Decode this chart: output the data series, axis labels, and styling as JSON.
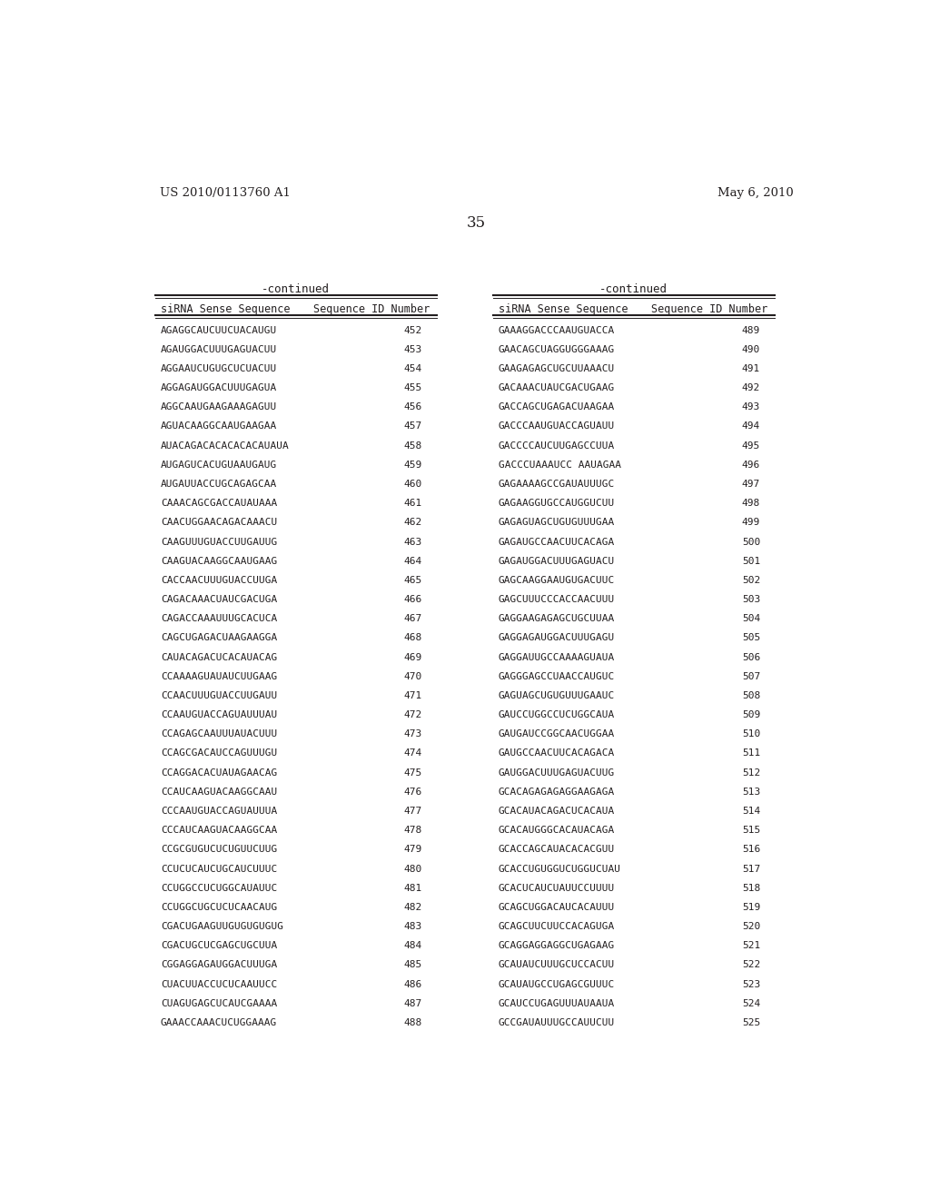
{
  "page_number": "35",
  "patent_number": "US 2010/0113760 A1",
  "patent_date": "May 6, 2010",
  "background_color": "#ffffff",
  "text_color": "#231f20",
  "continued_label": "-continued",
  "col1_header1": "siRNA Sense Sequence",
  "col1_header2": "Sequence ID Number",
  "col2_header1": "siRNA Sense Sequence",
  "col2_header2": "Sequence ID Number",
  "left_data": [
    [
      "AGAGGCAUCUUCUACAUGU",
      "452"
    ],
    [
      "AGAUGGACUUUGAGUACUU",
      "453"
    ],
    [
      "AGGAAUCUGUGCUCUACUU",
      "454"
    ],
    [
      "AGGAGAUGGACUUUGAGUA",
      "455"
    ],
    [
      "AGGCAAUGAAGAAAGAGUU",
      "456"
    ],
    [
      "AGUACAAGGCAAUGAAGAA",
      "457"
    ],
    [
      "AUACAGACACACACACAUAUA",
      "458"
    ],
    [
      "AUGAGUCACUGUAAUGAUG",
      "459"
    ],
    [
      "AUGAUUACCUGCAGAGCAA",
      "460"
    ],
    [
      "CAAACAGCGACCAUAUAAA",
      "461"
    ],
    [
      "CAACUGGAACAGACAAACU",
      "462"
    ],
    [
      "CAAGUUUGUACCUUGAUUG",
      "463"
    ],
    [
      "CAAGUACAAGGCAAUGAAG",
      "464"
    ],
    [
      "CACCAACUUUGUACCUUGA",
      "465"
    ],
    [
      "CAGACAAACUAUCGACUGA",
      "466"
    ],
    [
      "CAGACCAAAUUUGCACUCA",
      "467"
    ],
    [
      "CAGCUGAGACUAAGAAGGA",
      "468"
    ],
    [
      "CAUACAGACUCACAUACAG",
      "469"
    ],
    [
      "CCAAAAGUAUAUCUUGAAG",
      "470"
    ],
    [
      "CCAACUUUGUACCUUGAUU",
      "471"
    ],
    [
      "CCAAUGUACCAGUAUUUAU",
      "472"
    ],
    [
      "CCAGAGCAAUUUAUACUUU",
      "473"
    ],
    [
      "CCAGCGACAUCCAGUUUGU",
      "474"
    ],
    [
      "CCAGGACACUAUAGAACAG",
      "475"
    ],
    [
      "CCAUCAAGUACAAGGCAAU",
      "476"
    ],
    [
      "CCCAAUGUACCAGUAUUUA",
      "477"
    ],
    [
      "CCCAUCAAGUACAAGGCAA",
      "478"
    ],
    [
      "CCGCGUGUCUCUGUUCUUG",
      "479"
    ],
    [
      "CCUCUCAUCUGCAUCUUUC",
      "480"
    ],
    [
      "CCUGGCCUCUGGCAUAUUC",
      "481"
    ],
    [
      "CCUGGCUGCUCUCAACAUG",
      "482"
    ],
    [
      "CGACUGAAGUUGUGUGUGUG",
      "483"
    ],
    [
      "CGACUGCUCGAGCUGCUUA",
      "484"
    ],
    [
      "CGGAGGAGAUGGACUUUGA",
      "485"
    ],
    [
      "CUACUUACCUCUCAAUUCC",
      "486"
    ],
    [
      "CUAGUGAGCUCAUCGAAAA",
      "487"
    ],
    [
      "GAAACCAAACUCUGGAAAG",
      "488"
    ]
  ],
  "right_data": [
    [
      "GAAAGGACCCAAUGUACCA",
      "489"
    ],
    [
      "GAACAGCUAGGUGGGAAAG",
      "490"
    ],
    [
      "GAAGAGAGCUGCUUAAACU",
      "491"
    ],
    [
      "GACAAACUAUCGACUGAAG",
      "492"
    ],
    [
      "GACCAGCUGAGACUAAGAA",
      "493"
    ],
    [
      "GACCCAAUGUACCAGUAUU",
      "494"
    ],
    [
      "GACCCCAUCUUGAGCCUUA",
      "495"
    ],
    [
      "GACCCUAAAUCC AAUAGAA",
      "496"
    ],
    [
      "GAGAAAAGCCGAUAUUUGC",
      "497"
    ],
    [
      "GAGAAGGUGCCAUGGUCUU",
      "498"
    ],
    [
      "GAGAGUAGCUGUGUUUGAA",
      "499"
    ],
    [
      "GAGAUGCCAACUUCACAGA",
      "500"
    ],
    [
      "GAGAUGGACUUUGAGUACU",
      "501"
    ],
    [
      "GAGCAAGGAAUGUGACUUC",
      "502"
    ],
    [
      "GAGCUUUCCCACCAACUUU",
      "503"
    ],
    [
      "GAGGAAGAGAGCUGCUUAA",
      "504"
    ],
    [
      "GAGGAGAUGGACUUUGAGU",
      "505"
    ],
    [
      "GAGGAUUGCCAAAAGUAUA",
      "506"
    ],
    [
      "GAGGGAGCCUAACCAUGUC",
      "507"
    ],
    [
      "GAGUAGCUGUGUUUGAAUC",
      "508"
    ],
    [
      "GAUCCUGGCCUCUGGCAUA",
      "509"
    ],
    [
      "GAUGAUCCGGCAACUGGAA",
      "510"
    ],
    [
      "GAUGCCAACUUCACAGACA",
      "511"
    ],
    [
      "GAUGGACUUUGAGUACUUG",
      "512"
    ],
    [
      "GCACAGAGAGAGGAAGAGA",
      "513"
    ],
    [
      "GCACAUACAGACUCACAUA",
      "514"
    ],
    [
      "GCACAUGGGCACAUACAGA",
      "515"
    ],
    [
      "GCACCAGCAUACACACGUU",
      "516"
    ],
    [
      "GCACCUGUGGUCUGGUCUAU",
      "517"
    ],
    [
      "GCACUCAUCUAUUCCUUUU",
      "518"
    ],
    [
      "GCAGCUGGACAUCACAUUU",
      "519"
    ],
    [
      "GCAGCUUCUUCCACAGUGA",
      "520"
    ],
    [
      "GCAGGAGGAGGCUGAGAAG",
      "521"
    ],
    [
      "GCAUAUCUUUGCUCCACUU",
      "522"
    ],
    [
      "GCAUAUGCCUGAGCGUUUC",
      "523"
    ],
    [
      "GCAUCCUGAGUUUAUAAUA",
      "524"
    ],
    [
      "GCCGAUAUUUGCCAUUCUU",
      "525"
    ]
  ],
  "patent_fontsize": 9.5,
  "header_fontsize": 8.5,
  "data_fontsize": 8.0,
  "page_num_fontsize": 12
}
